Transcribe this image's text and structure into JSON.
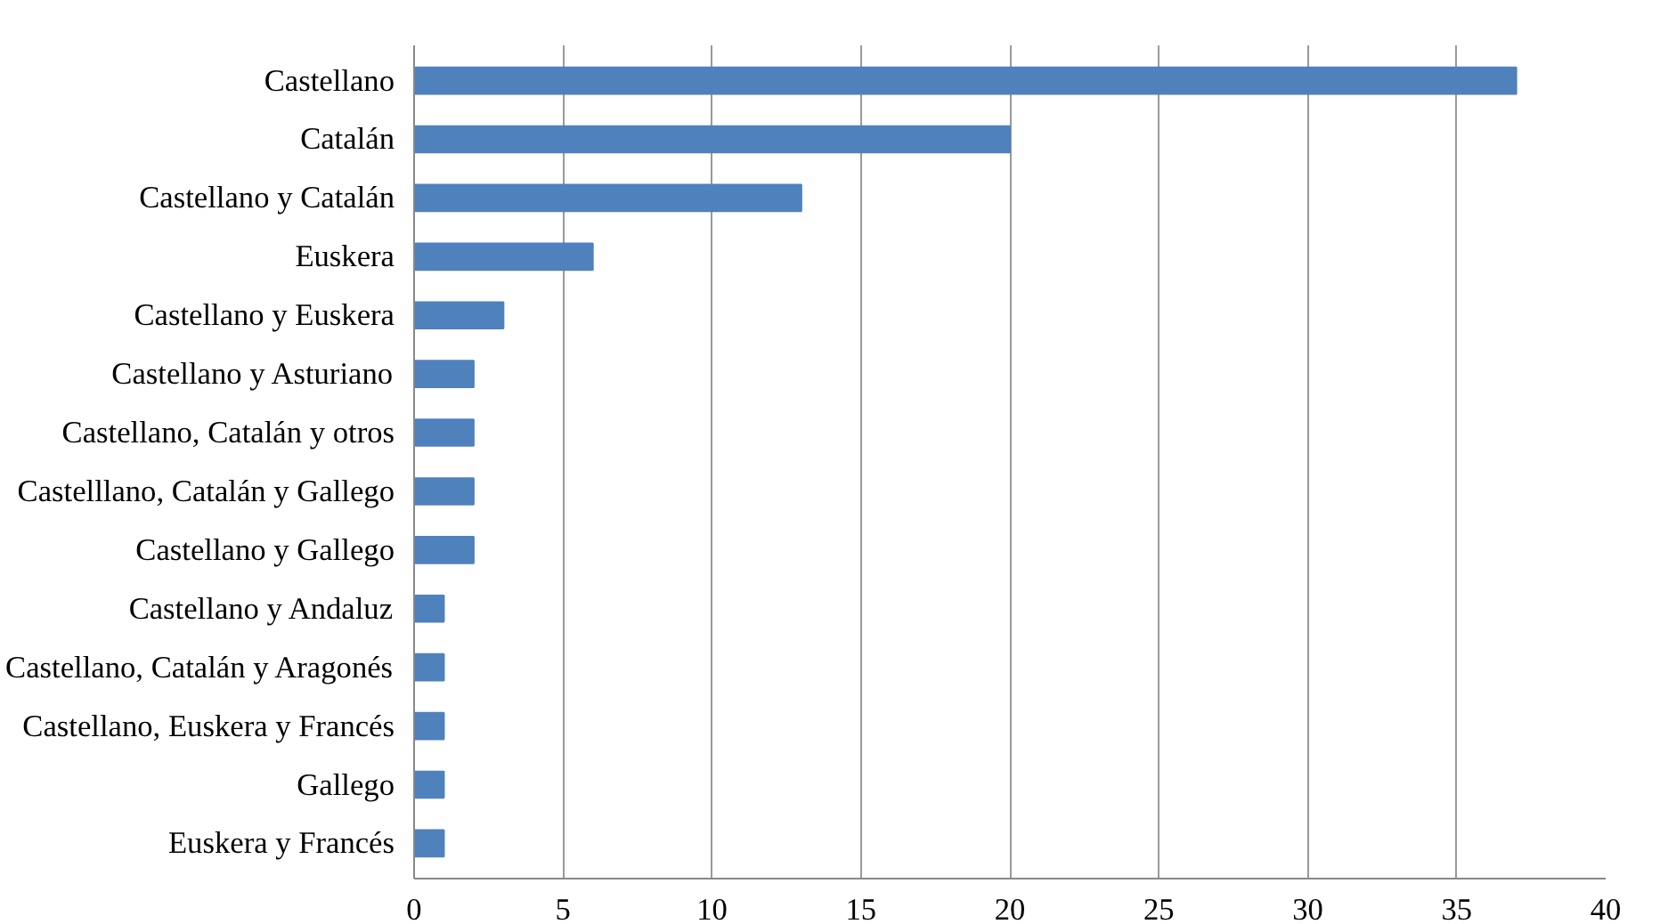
{
  "chart_data": {
    "type": "bar",
    "orientation": "horizontal",
    "categories": [
      "Castellano",
      "Catalán",
      "Castellano y Catalán",
      "Euskera",
      "Castellano y Euskera",
      "Castellano y Asturiano",
      "Castellano, Catalán y otros",
      "Castelllano, Catalán y Gallego",
      "Castellano y Gallego",
      "Castellano y Andaluz",
      "Castellano, Catalán y Aragonés",
      "Castellano, Euskera y Francés",
      "Gallego",
      "Euskera y Francés"
    ],
    "values": [
      37,
      20,
      13,
      6,
      3,
      2,
      2,
      2,
      2,
      1,
      1,
      1,
      1,
      1
    ],
    "color": "#4f81bd",
    "xlim": [
      0,
      40
    ],
    "xticks": [
      0,
      5,
      10,
      15,
      20,
      25,
      30,
      35,
      40
    ],
    "grid": "x"
  }
}
